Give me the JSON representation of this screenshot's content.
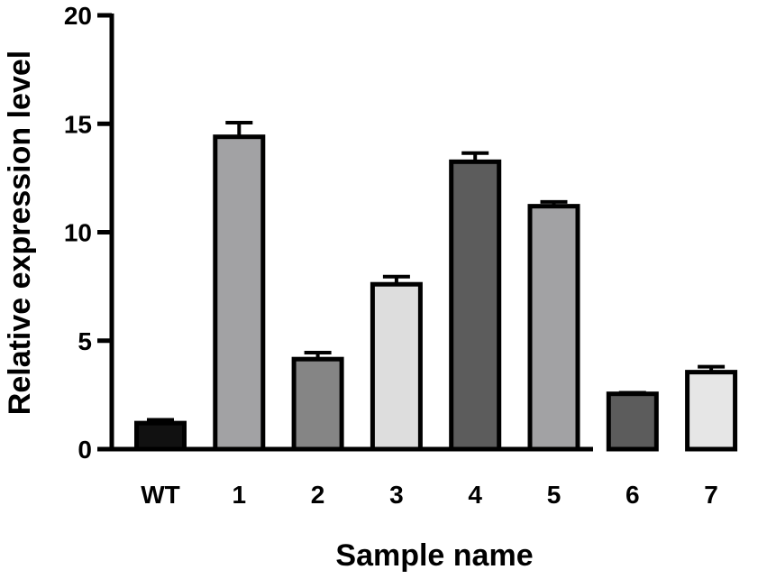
{
  "chart_data": {
    "type": "bar",
    "categories": [
      "WT",
      "1",
      "2",
      "3",
      "4",
      "5",
      "6",
      "7"
    ],
    "series": [
      {
        "values": [
          1.2,
          14.4,
          4.15,
          7.6,
          13.25,
          11.2,
          2.55,
          3.55
        ],
        "errors": [
          0.15,
          0.65,
          0.3,
          0.35,
          0.4,
          0.2,
          0.05,
          0.25
        ]
      }
    ],
    "bar_colors": [
      "#111111",
      "#a2a2a4",
      "#858585",
      "#dddddd",
      "#5c5c5c",
      "#a2a2a4",
      "#5c5c5c",
      "#e6e6e6"
    ],
    "xlabel": "Sample name",
    "ylabel": "Relative expression level",
    "ylim": [
      0,
      20
    ],
    "yticks": [
      0,
      5,
      10,
      15,
      20
    ],
    "grid": false,
    "legend": "none"
  }
}
